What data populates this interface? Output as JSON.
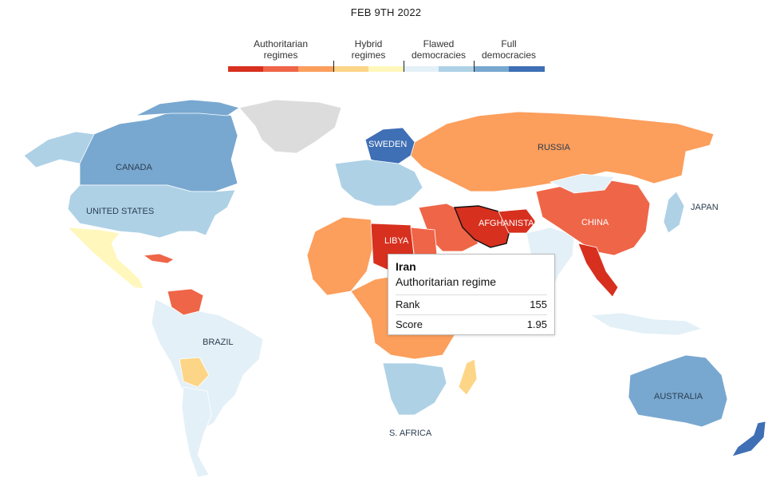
{
  "date": "FEB 9TH 2022",
  "legend": {
    "categories": [
      {
        "label": "Authoritarian\nregimes",
        "colors": [
          "#d7301f",
          "#ef6548",
          "#fc9e5c"
        ]
      },
      {
        "label": "Hybrid\nregimes",
        "colors": [
          "#fdd587",
          "#fff7bc"
        ]
      },
      {
        "label": "Flawed\ndemocracies",
        "colors": [
          "#e3f0f7",
          "#aed1e6"
        ]
      },
      {
        "label": "Full\ndemocracies",
        "colors": [
          "#78a8d0",
          "#3f6fb5"
        ]
      }
    ]
  },
  "map_labels": {
    "canada": "CANADA",
    "united_states": "UNITED STATES",
    "brazil": "BRAZIL",
    "russia": "RUSSIA",
    "china": "CHINA",
    "japan": "JAPAN",
    "sweden": "SWEDEN",
    "libya": "LIBYA",
    "afghanistan": "AFGHANISTAN",
    "australia": "AUSTRALIA",
    "south_africa": "S. AFRICA"
  },
  "tooltip": {
    "country": "Iran",
    "category": "Authoritarian regime",
    "rank_label": "Rank",
    "rank": "155",
    "score_label": "Score",
    "score": "1.95"
  },
  "colors": {
    "greenland": "#dcdcdc",
    "canada": "#78a8d0",
    "united_states": "#aed1e6",
    "mexico": "#fff7bc",
    "brazil": "#e3f0f7",
    "venezuela": "#ef6548",
    "russia": "#fc9e5c",
    "china": "#ef6548",
    "australia": "#78a8d0",
    "iran": "#d7301f",
    "libya": "#d7301f",
    "south_africa": "#aed1e6",
    "scandinavia": "#3f6fb5",
    "japan": "#aed1e6",
    "new_zealand": "#3f6fb5"
  }
}
